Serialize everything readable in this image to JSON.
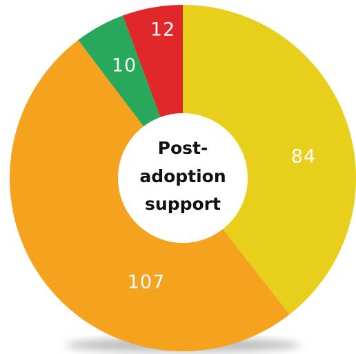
{
  "chart_data": {
    "type": "donut",
    "title": [
      "Post-",
      "adoption",
      "support"
    ],
    "values": [
      84,
      107,
      10,
      12
    ],
    "colors": [
      "#e8cf1b",
      "#f5a21f",
      "#27a85a",
      "#e0282a"
    ]
  }
}
